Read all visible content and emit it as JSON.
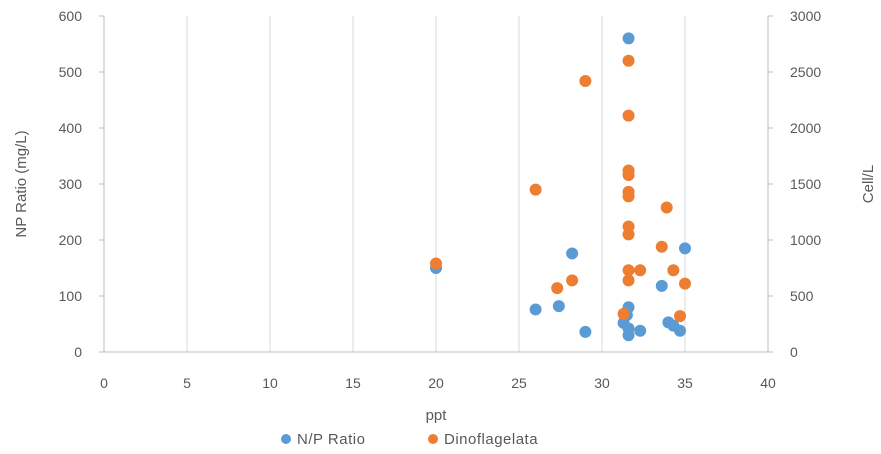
{
  "chart_data": {
    "type": "scatter",
    "xlabel": "ppt",
    "ylabel": "NP Ratio (mg/L)",
    "y2label": "Cell/L",
    "xlim": [
      0,
      40
    ],
    "ylim": [
      0,
      600
    ],
    "y2lim": [
      0,
      3000
    ],
    "xticks": [
      "0",
      "5",
      "10",
      "15",
      "20",
      "25",
      "30",
      "35",
      "40"
    ],
    "yticks": [
      "0",
      "100",
      "200",
      "300",
      "400",
      "500",
      "600"
    ],
    "y2ticks": [
      "0",
      "500",
      "1000",
      "1500",
      "2000",
      "2500",
      "3000"
    ],
    "grid": "vertical",
    "legend": "bottom",
    "series": [
      {
        "name": "N/P Ratio",
        "axis": "left",
        "color": "#5B9BD5",
        "points": [
          [
            20,
            150
          ],
          [
            26,
            76
          ],
          [
            27.4,
            82
          ],
          [
            28.2,
            176
          ],
          [
            29,
            36
          ],
          [
            31.3,
            52
          ],
          [
            31.5,
            66
          ],
          [
            31.6,
            80
          ],
          [
            31.6,
            560
          ],
          [
            31.6,
            42
          ],
          [
            31.6,
            30
          ],
          [
            32.3,
            38
          ],
          [
            33.6,
            118
          ],
          [
            34,
            53
          ],
          [
            34.3,
            47
          ],
          [
            34.7,
            38
          ],
          [
            35,
            185
          ]
        ]
      },
      {
        "name": "Dinoflagelata",
        "axis": "right",
        "color": "#ED7D31",
        "points": [
          [
            20,
            790
          ],
          [
            26,
            1450
          ],
          [
            27.3,
            570
          ],
          [
            28.2,
            640
          ],
          [
            29,
            2420
          ],
          [
            31.3,
            340
          ],
          [
            31.6,
            2600
          ],
          [
            31.6,
            2110
          ],
          [
            31.6,
            1620
          ],
          [
            31.6,
            1580
          ],
          [
            31.6,
            1430
          ],
          [
            31.6,
            1390
          ],
          [
            31.6,
            1120
          ],
          [
            31.6,
            1050
          ],
          [
            31.6,
            730
          ],
          [
            31.6,
            640
          ],
          [
            32.3,
            730
          ],
          [
            33.6,
            940
          ],
          [
            33.9,
            1290
          ],
          [
            34.3,
            730
          ],
          [
            34.7,
            320
          ],
          [
            35,
            610
          ]
        ]
      }
    ]
  }
}
